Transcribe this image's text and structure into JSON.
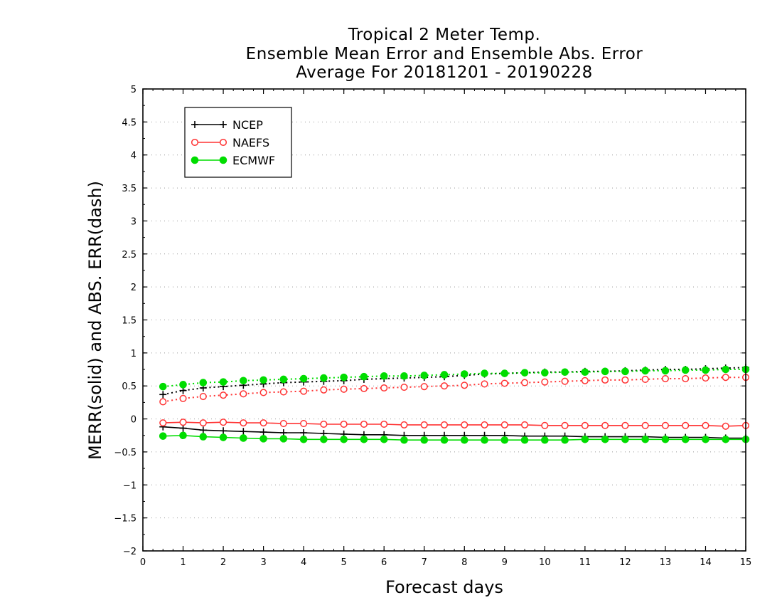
{
  "chart_data": {
    "type": "line",
    "title_lines": [
      "Tropical 2 Meter Temp.",
      "Ensemble Mean Error and Ensemble Abs. Error",
      "Average For 20181201 - 20190228"
    ],
    "xlabel": "Forecast days",
    "ylabel": "MERR(solid) and ABS. ERR(dash)",
    "xlim": [
      0,
      15
    ],
    "ylim": [
      -2,
      5
    ],
    "xticks": [
      "0",
      "1",
      "2",
      "3",
      "4",
      "5",
      "6",
      "7",
      "8",
      "9",
      "10",
      "11",
      "12",
      "13",
      "14",
      "15"
    ],
    "yticks": [
      "−2",
      "−1.5",
      "−1",
      "−0.5",
      "0",
      "0.5",
      "1",
      "1.5",
      "2",
      "2.5",
      "3",
      "3.5",
      "4",
      "4.5",
      "5"
    ],
    "ytick_values": [
      -2,
      -1.5,
      -1,
      -0.5,
      0,
      0.5,
      1,
      1.5,
      2,
      2.5,
      3,
      3.5,
      4,
      4.5,
      5
    ],
    "grid": "horizontal dotted",
    "legend_position": "top-left",
    "x": [
      0.5,
      1,
      1.5,
      2,
      2.5,
      3,
      3.5,
      4,
      4.5,
      5,
      5.5,
      6,
      6.5,
      7,
      7.5,
      8,
      8.5,
      9,
      9.5,
      10,
      10.5,
      11,
      11.5,
      12,
      12.5,
      13,
      13.5,
      14,
      14.5,
      15
    ],
    "series": [
      {
        "name": "NCEP",
        "color": "#000000",
        "marker": "plus",
        "merr": [
          -0.12,
          -0.14,
          -0.17,
          -0.18,
          -0.19,
          -0.2,
          -0.21,
          -0.21,
          -0.22,
          -0.23,
          -0.24,
          -0.24,
          -0.25,
          -0.25,
          -0.25,
          -0.25,
          -0.25,
          -0.25,
          -0.26,
          -0.26,
          -0.26,
          -0.27,
          -0.27,
          -0.27,
          -0.27,
          -0.28,
          -0.28,
          -0.28,
          -0.29,
          -0.29
        ],
        "abs_err": [
          0.37,
          0.43,
          0.47,
          0.49,
          0.51,
          0.53,
          0.55,
          0.56,
          0.57,
          0.58,
          0.6,
          0.61,
          0.62,
          0.63,
          0.64,
          0.66,
          0.68,
          0.69,
          0.7,
          0.71,
          0.71,
          0.72,
          0.72,
          0.73,
          0.74,
          0.75,
          0.75,
          0.76,
          0.77,
          0.78
        ]
      },
      {
        "name": "NAEFS",
        "color": "#ff3333",
        "marker": "open-circle",
        "merr": [
          -0.06,
          -0.05,
          -0.06,
          -0.05,
          -0.06,
          -0.06,
          -0.07,
          -0.07,
          -0.08,
          -0.08,
          -0.08,
          -0.08,
          -0.09,
          -0.09,
          -0.09,
          -0.09,
          -0.09,
          -0.09,
          -0.09,
          -0.1,
          -0.1,
          -0.1,
          -0.1,
          -0.1,
          -0.1,
          -0.1,
          -0.1,
          -0.1,
          -0.11,
          -0.1
        ],
        "abs_err": [
          0.26,
          0.31,
          0.34,
          0.36,
          0.38,
          0.4,
          0.41,
          0.42,
          0.44,
          0.45,
          0.46,
          0.47,
          0.48,
          0.49,
          0.5,
          0.51,
          0.53,
          0.54,
          0.55,
          0.56,
          0.57,
          0.58,
          0.59,
          0.59,
          0.6,
          0.61,
          0.61,
          0.62,
          0.63,
          0.63
        ]
      },
      {
        "name": "ECMWF",
        "color": "#00dd00",
        "marker": "filled-circle",
        "merr": [
          -0.26,
          -0.25,
          -0.27,
          -0.28,
          -0.29,
          -0.3,
          -0.3,
          -0.31,
          -0.31,
          -0.31,
          -0.31,
          -0.31,
          -0.32,
          -0.32,
          -0.32,
          -0.32,
          -0.32,
          -0.32,
          -0.32,
          -0.32,
          -0.32,
          -0.31,
          -0.31,
          -0.31,
          -0.31,
          -0.31,
          -0.31,
          -0.31,
          -0.31,
          -0.31
        ],
        "abs_err": [
          0.49,
          0.52,
          0.55,
          0.56,
          0.58,
          0.59,
          0.6,
          0.61,
          0.62,
          0.63,
          0.64,
          0.65,
          0.65,
          0.66,
          0.67,
          0.68,
          0.69,
          0.69,
          0.7,
          0.7,
          0.71,
          0.71,
          0.72,
          0.72,
          0.73,
          0.73,
          0.74,
          0.74,
          0.75,
          0.75
        ]
      }
    ]
  }
}
